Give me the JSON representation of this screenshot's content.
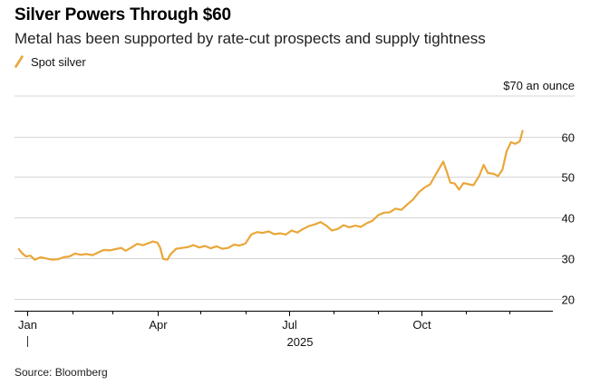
{
  "header": {
    "title": "Silver Powers Through $60",
    "subtitle": "Metal has been supported by rate-cut prospects and supply tightness"
  },
  "source": "Source: Bloomberg",
  "colors": {
    "series": "#E9A73A",
    "grid": "#d6d6d6",
    "axis": "#000000"
  },
  "chart_data": {
    "type": "line",
    "unit_label": "$70 an ounce",
    "ylim": [
      17,
      70
    ],
    "y_ticks": [
      20,
      30,
      40,
      50,
      60
    ],
    "y_tick_labels": [
      "20",
      "30",
      "40",
      "50",
      "60"
    ],
    "xlim": [
      "2024-12-23",
      "2025-12-31"
    ],
    "x_ticks": [
      "2025-01-01",
      "2025-04-01",
      "2025-07-01",
      "2025-10-01"
    ],
    "x_tick_labels": [
      "Jan",
      "Apr",
      "Jul",
      "Oct"
    ],
    "x_minor_ticks": [
      "2025-02-01",
      "2025-03-01",
      "2025-05-01",
      "2025-06-01",
      "2025-08-01",
      "2025-09-01",
      "2025-11-01",
      "2025-12-01"
    ],
    "year_label": "2025",
    "grid": true,
    "legend_position": "top-left",
    "series": [
      {
        "name": "Spot silver",
        "points": [
          [
            "2024-12-26",
            32.2
          ],
          [
            "2024-12-28",
            31.3
          ],
          [
            "2024-12-31",
            30.4
          ],
          [
            "2025-01-03",
            30.6
          ],
          [
            "2025-01-06",
            29.6
          ],
          [
            "2025-01-10",
            30.2
          ],
          [
            "2025-01-14",
            29.9
          ],
          [
            "2025-01-18",
            29.6
          ],
          [
            "2025-01-22",
            29.7
          ],
          [
            "2025-01-26",
            30.2
          ],
          [
            "2025-01-30",
            30.4
          ],
          [
            "2025-02-03",
            31.1
          ],
          [
            "2025-02-07",
            30.8
          ],
          [
            "2025-02-11",
            31.0
          ],
          [
            "2025-02-15",
            30.7
          ],
          [
            "2025-02-19",
            31.4
          ],
          [
            "2025-02-23",
            32.0
          ],
          [
            "2025-02-27",
            31.9
          ],
          [
            "2025-03-03",
            32.2
          ],
          [
            "2025-03-07",
            32.5
          ],
          [
            "2025-03-10",
            31.8
          ],
          [
            "2025-03-14",
            32.6
          ],
          [
            "2025-03-18",
            33.5
          ],
          [
            "2025-03-22",
            33.2
          ],
          [
            "2025-03-26",
            33.7
          ],
          [
            "2025-03-29",
            34.1
          ],
          [
            "2025-04-01",
            33.8
          ],
          [
            "2025-04-03",
            32.5
          ],
          [
            "2025-04-05",
            29.8
          ],
          [
            "2025-04-08",
            29.6
          ],
          [
            "2025-04-10",
            30.9
          ],
          [
            "2025-04-14",
            32.3
          ],
          [
            "2025-04-18",
            32.5
          ],
          [
            "2025-04-22",
            32.7
          ],
          [
            "2025-04-26",
            33.2
          ],
          [
            "2025-04-30",
            32.6
          ],
          [
            "2025-05-04",
            33.0
          ],
          [
            "2025-05-08",
            32.4
          ],
          [
            "2025-05-12",
            32.9
          ],
          [
            "2025-05-16",
            32.3
          ],
          [
            "2025-05-20",
            32.5
          ],
          [
            "2025-05-24",
            33.3
          ],
          [
            "2025-05-28",
            33.1
          ],
          [
            "2025-06-01",
            33.6
          ],
          [
            "2025-06-05",
            35.8
          ],
          [
            "2025-06-09",
            36.4
          ],
          [
            "2025-06-13",
            36.2
          ],
          [
            "2025-06-17",
            36.6
          ],
          [
            "2025-06-21",
            35.9
          ],
          [
            "2025-06-25",
            36.1
          ],
          [
            "2025-06-29",
            35.8
          ],
          [
            "2025-07-03",
            36.8
          ],
          [
            "2025-07-07",
            36.3
          ],
          [
            "2025-07-11",
            37.2
          ],
          [
            "2025-07-15",
            37.9
          ],
          [
            "2025-07-19",
            38.3
          ],
          [
            "2025-07-23",
            38.9
          ],
          [
            "2025-07-27",
            38.0
          ],
          [
            "2025-07-31",
            36.8
          ],
          [
            "2025-08-04",
            37.2
          ],
          [
            "2025-08-08",
            38.1
          ],
          [
            "2025-08-12",
            37.6
          ],
          [
            "2025-08-16",
            38.0
          ],
          [
            "2025-08-20",
            37.7
          ],
          [
            "2025-08-24",
            38.6
          ],
          [
            "2025-08-28",
            39.2
          ],
          [
            "2025-09-01",
            40.6
          ],
          [
            "2025-09-05",
            41.2
          ],
          [
            "2025-09-09",
            41.3
          ],
          [
            "2025-09-13",
            42.2
          ],
          [
            "2025-09-17",
            41.9
          ],
          [
            "2025-09-21",
            43.2
          ],
          [
            "2025-09-25",
            44.4
          ],
          [
            "2025-09-29",
            46.2
          ],
          [
            "2025-10-03",
            47.4
          ],
          [
            "2025-10-07",
            48.2
          ],
          [
            "2025-10-10",
            50.1
          ],
          [
            "2025-10-14",
            52.6
          ],
          [
            "2025-10-16",
            53.8
          ],
          [
            "2025-10-18",
            51.8
          ],
          [
            "2025-10-21",
            48.6
          ],
          [
            "2025-10-24",
            48.4
          ],
          [
            "2025-10-27",
            46.9
          ],
          [
            "2025-10-30",
            48.5
          ],
          [
            "2025-11-03",
            48.2
          ],
          [
            "2025-11-06",
            48.0
          ],
          [
            "2025-11-10",
            50.3
          ],
          [
            "2025-11-13",
            53.0
          ],
          [
            "2025-11-16",
            51.0
          ],
          [
            "2025-11-20",
            50.8
          ],
          [
            "2025-11-23",
            50.2
          ],
          [
            "2025-11-26",
            51.8
          ],
          [
            "2025-11-29",
            56.4
          ],
          [
            "2025-12-02",
            58.6
          ],
          [
            "2025-12-05",
            58.2
          ],
          [
            "2025-12-08",
            58.8
          ],
          [
            "2025-12-10",
            61.4
          ]
        ]
      }
    ]
  }
}
